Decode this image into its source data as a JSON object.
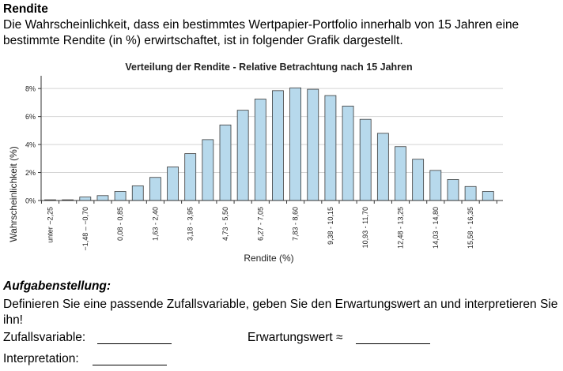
{
  "header": {
    "title": "Rendite",
    "intro": "Die Wahrscheinlichkeit, dass ein bestimmtes Wertpapier-Portfolio innerhalb von 15 Jahren eine bestimmte Rendite (in %) erwirtschaftet, ist in folgender Grafik dargestellt."
  },
  "chart_data": {
    "type": "bar",
    "title": "Verteilung der Rendite - Relative Betrachtung nach 15 Jahren",
    "xlabel": "Rendite (%)",
    "ylabel": "Wahrscheinlichkeit (%)",
    "ylim": [
      0,
      8.8
    ],
    "yticks": [
      "0%",
      "2%",
      "4%",
      "6%",
      "8%"
    ],
    "grid": true,
    "categories": [
      "unter −2,25",
      "",
      "−1,48 – −0,70",
      "",
      "0,08 - 0,85",
      "",
      "1,63 - 2,40",
      "",
      "3,18 - 3,95",
      "",
      "4,73 - 5,50",
      "",
      "6,27 - 7,05",
      "",
      "7,83 - 8,60",
      "",
      "9,38 - 10,15",
      "",
      "10,93 - 11,70",
      "",
      "12,48 - 13,25",
      "",
      "14,03 - 14,80",
      "",
      "15,58 - 16,35",
      ""
    ],
    "values": [
      0.05,
      0.05,
      0.25,
      0.35,
      0.65,
      1.05,
      1.65,
      2.4,
      3.35,
      4.35,
      5.4,
      6.45,
      7.25,
      7.85,
      8.05,
      7.95,
      7.5,
      6.75,
      5.8,
      4.8,
      3.85,
      2.95,
      2.15,
      1.5,
      1.0,
      0.65
    ],
    "bar_color": "#b7d9ec",
    "bar_stroke": "#3a3a3a",
    "grid_color": "#d4d4d4"
  },
  "task": {
    "heading": "Aufgabenstellung:",
    "text": "Definieren Sie eine passende Zufallsvariable, geben Sie den Erwartungswert an und interpretieren Sie ihn!",
    "zufallsvariable_label": "Zufallsvariable:",
    "erwartungswert_label": "Erwartungswert ≈",
    "interpretation_label": "Interpretation:"
  }
}
